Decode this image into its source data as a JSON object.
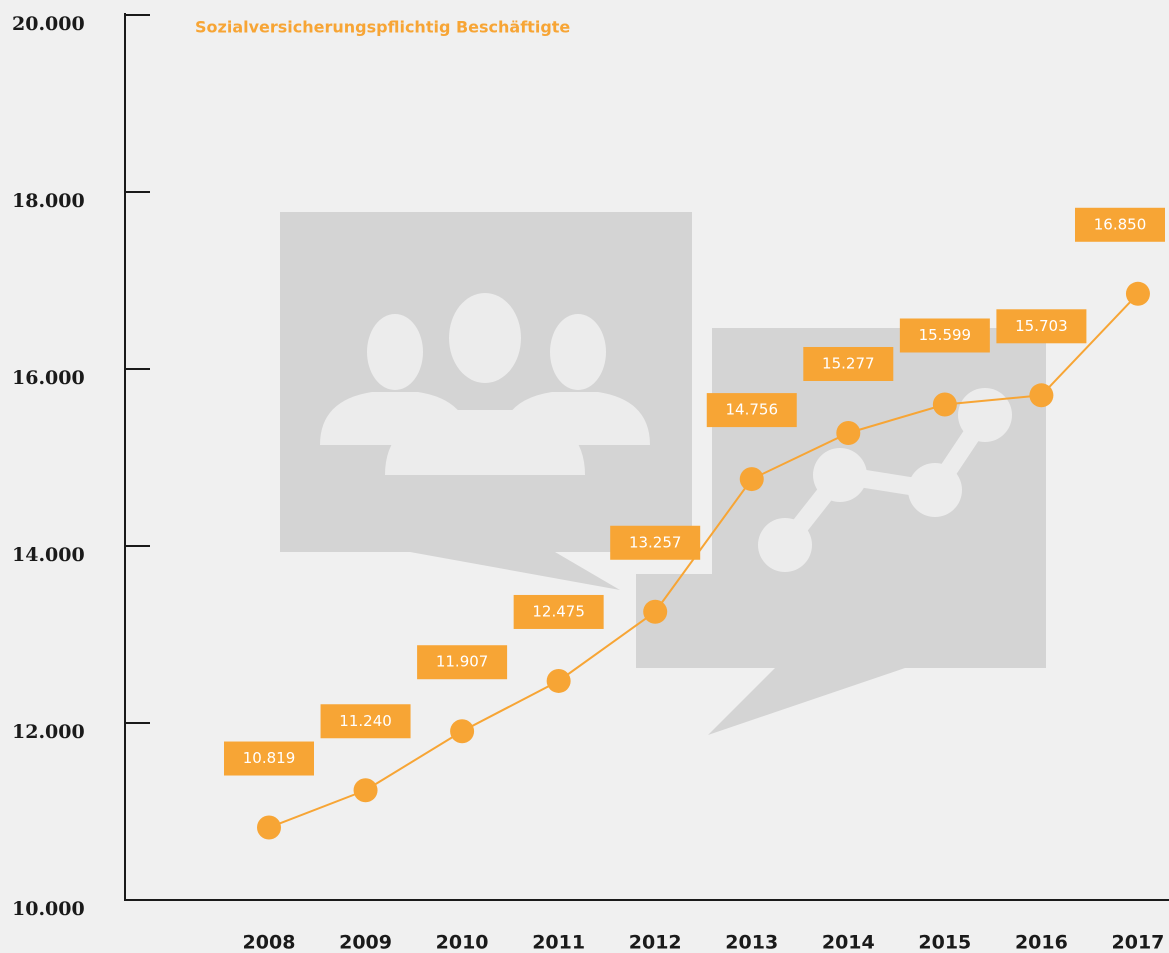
{
  "chart_data": {
    "type": "line",
    "title": "Sozialversicherungspflichtig Beschäftigte",
    "categories": [
      "2008",
      "2009",
      "2010",
      "2011",
      "2012",
      "2013",
      "2014",
      "2015",
      "2016",
      "2017"
    ],
    "series": [
      {
        "name": "Sozialversicherungspflichtig Beschäftigte",
        "color": "#f7a535",
        "values": [
          10819,
          11240,
          11907,
          12475,
          13257,
          14756,
          15277,
          15599,
          15703,
          16850
        ],
        "value_labels": [
          "10.819",
          "11.240",
          "11.907",
          "12.475",
          "13.257",
          "14.756",
          "15.277",
          "15.599",
          "15.703",
          "16.850"
        ]
      }
    ],
    "ylim": [
      10000,
      20000
    ],
    "yticks": [
      {
        "value": 10000,
        "label": "10.000"
      },
      {
        "value": 12000,
        "label": "12.000"
      },
      {
        "value": 14000,
        "label": "14.000"
      },
      {
        "value": 16000,
        "label": "16.000"
      },
      {
        "value": 18000,
        "label": "18.000"
      },
      {
        "value": 20000,
        "label": "20.000"
      }
    ]
  }
}
